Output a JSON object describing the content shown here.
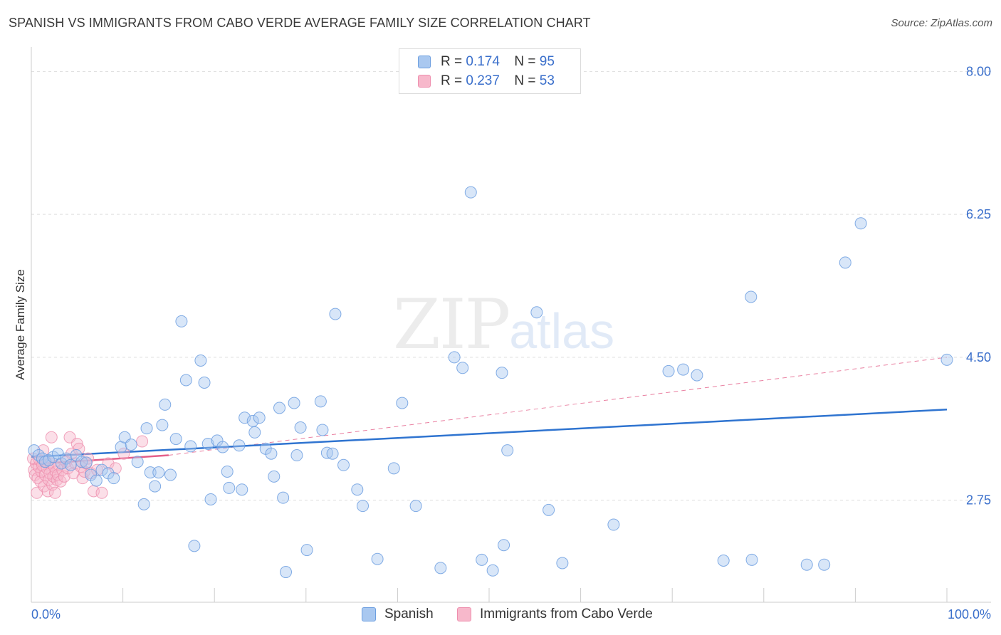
{
  "header": {
    "title": "SPANISH VS IMMIGRANTS FROM CABO VERDE AVERAGE FAMILY SIZE CORRELATION CHART",
    "source": "Source: ZipAtlas.com"
  },
  "watermark": {
    "zip": "ZIP",
    "atlas": "atlas"
  },
  "legend": {
    "rows": [
      {
        "r_label": "R =",
        "r_value": "0.174",
        "n_label": "N =",
        "n_value": "95"
      },
      {
        "r_label": "R =",
        "r_value": "0.237",
        "n_label": "N =",
        "n_value": "53"
      }
    ]
  },
  "colors": {
    "blue_fill": "#a9c8f0",
    "blue_stroke": "#6d9fe0",
    "blue_line": "#2f74d0",
    "pink_fill": "#f7b8cb",
    "pink_stroke": "#ee8fae",
    "pink_line": "#e4608a",
    "grid": "#dddddd",
    "tick_text": "#3a6fcb"
  },
  "chart_data": {
    "type": "scatter",
    "title": "SPANISH VS IMMIGRANTS FROM CABO VERDE AVERAGE FAMILY SIZE CORRELATION CHART",
    "xlabel": "",
    "ylabel": "Average Family Size",
    "xlim": [
      0,
      100
    ],
    "ylim": [
      1.5,
      8.3
    ],
    "x_tick_labels": [
      "0.0%",
      "100.0%"
    ],
    "y_ticks": [
      2.75,
      4.5,
      6.25,
      8.0
    ],
    "y_tick_labels": [
      "2.75",
      "4.50",
      "6.25",
      "8.00"
    ],
    "grid": true,
    "legend_position": "top-center",
    "series": [
      {
        "name": "Spanish",
        "color": "#a9c8f0",
        "trend": {
          "x": [
            0,
            100
          ],
          "y": [
            3.28,
            3.86
          ]
        },
        "points": [
          [
            0.3,
            3.36
          ],
          [
            0.8,
            3.3
          ],
          [
            1.2,
            3.26
          ],
          [
            1.5,
            3.22
          ],
          [
            1.9,
            3.24
          ],
          [
            2.4,
            3.28
          ],
          [
            2.9,
            3.32
          ],
          [
            3.3,
            3.2
          ],
          [
            3.8,
            3.26
          ],
          [
            4.3,
            3.18
          ],
          [
            4.9,
            3.3
          ],
          [
            5.5,
            3.22
          ],
          [
            6.0,
            3.21
          ],
          [
            6.5,
            3.06
          ],
          [
            7.1,
            2.99
          ],
          [
            7.7,
            3.12
          ],
          [
            8.4,
            3.08
          ],
          [
            9.0,
            3.02
          ],
          [
            9.8,
            3.4
          ],
          [
            10.2,
            3.52
          ],
          [
            10.9,
            3.43
          ],
          [
            11.6,
            3.22
          ],
          [
            12.3,
            2.7
          ],
          [
            12.6,
            3.63
          ],
          [
            13.0,
            3.09
          ],
          [
            13.5,
            2.92
          ],
          [
            13.9,
            3.09
          ],
          [
            14.3,
            3.67
          ],
          [
            14.6,
            3.92
          ],
          [
            15.2,
            3.06
          ],
          [
            15.8,
            3.5
          ],
          [
            16.4,
            4.94
          ],
          [
            16.9,
            4.22
          ],
          [
            17.4,
            3.41
          ],
          [
            17.8,
            2.19
          ],
          [
            18.5,
            4.46
          ],
          [
            18.9,
            4.19
          ],
          [
            19.3,
            3.44
          ],
          [
            19.6,
            2.76
          ],
          [
            20.3,
            3.48
          ],
          [
            20.9,
            3.4
          ],
          [
            21.4,
            3.1
          ],
          [
            21.6,
            2.9
          ],
          [
            22.7,
            3.42
          ],
          [
            23.0,
            2.88
          ],
          [
            23.3,
            3.76
          ],
          [
            24.2,
            3.72
          ],
          [
            24.4,
            3.58
          ],
          [
            24.9,
            3.76
          ],
          [
            25.6,
            3.38
          ],
          [
            26.2,
            3.32
          ],
          [
            26.5,
            3.04
          ],
          [
            27.1,
            3.88
          ],
          [
            27.5,
            2.78
          ],
          [
            27.8,
            1.87
          ],
          [
            28.7,
            3.94
          ],
          [
            29.0,
            3.3
          ],
          [
            29.4,
            3.64
          ],
          [
            30.1,
            2.14
          ],
          [
            31.6,
            3.96
          ],
          [
            31.8,
            3.61
          ],
          [
            32.3,
            3.33
          ],
          [
            32.9,
            3.32
          ],
          [
            33.2,
            5.03
          ],
          [
            34.1,
            3.18
          ],
          [
            35.6,
            2.88
          ],
          [
            36.2,
            2.68
          ],
          [
            37.8,
            2.03
          ],
          [
            39.6,
            3.14
          ],
          [
            40.5,
            3.94
          ],
          [
            42.0,
            2.68
          ],
          [
            44.7,
            1.92
          ],
          [
            46.2,
            4.5
          ],
          [
            47.1,
            4.37
          ],
          [
            48.0,
            6.52
          ],
          [
            49.2,
            2.02
          ],
          [
            50.4,
            1.89
          ],
          [
            51.4,
            4.31
          ],
          [
            51.6,
            2.2
          ],
          [
            52.0,
            3.36
          ],
          [
            55.2,
            5.05
          ],
          [
            56.5,
            2.63
          ],
          [
            63.6,
            2.45
          ],
          [
            69.6,
            4.33
          ],
          [
            71.2,
            4.35
          ],
          [
            72.7,
            4.28
          ],
          [
            75.6,
            2.01
          ],
          [
            78.6,
            5.24
          ],
          [
            78.7,
            2.02
          ],
          [
            84.7,
            1.96
          ],
          [
            86.6,
            1.96
          ],
          [
            88.9,
            5.66
          ],
          [
            90.6,
            6.14
          ],
          [
            100.0,
            4.47
          ],
          [
            58.0,
            1.98
          ]
        ]
      },
      {
        "name": "Immigrants from Cabo Verde",
        "color": "#f7b8cb",
        "trend": {
          "x": [
            0,
            15
          ],
          "y": [
            3.19,
            3.3
          ]
        },
        "trend_extension": {
          "x": [
            15,
            100
          ],
          "y": [
            3.3,
            4.5
          ]
        },
        "points": [
          [
            0.2,
            3.26
          ],
          [
            0.3,
            3.12
          ],
          [
            0.4,
            3.06
          ],
          [
            0.5,
            3.2
          ],
          [
            0.6,
            2.84
          ],
          [
            0.7,
            3.02
          ],
          [
            0.8,
            3.16
          ],
          [
            0.9,
            3.24
          ],
          [
            1.0,
            2.98
          ],
          [
            1.1,
            3.1
          ],
          [
            1.2,
            3.18
          ],
          [
            1.3,
            3.36
          ],
          [
            1.4,
            2.92
          ],
          [
            1.5,
            3.06
          ],
          [
            1.6,
            3.22
          ],
          [
            1.7,
            3.14
          ],
          [
            1.8,
            2.86
          ],
          [
            1.9,
            3.0
          ],
          [
            2.0,
            3.08
          ],
          [
            2.1,
            3.2
          ],
          [
            2.2,
            3.52
          ],
          [
            2.3,
            2.94
          ],
          [
            2.4,
            3.04
          ],
          [
            2.5,
            3.16
          ],
          [
            2.6,
            2.84
          ],
          [
            2.7,
            3.1
          ],
          [
            2.8,
            3.0
          ],
          [
            2.9,
            3.06
          ],
          [
            3.0,
            3.18
          ],
          [
            3.2,
            2.98
          ],
          [
            3.4,
            3.12
          ],
          [
            3.6,
            3.04
          ],
          [
            3.8,
            3.22
          ],
          [
            4.0,
            3.14
          ],
          [
            4.2,
            3.52
          ],
          [
            4.4,
            3.32
          ],
          [
            4.6,
            3.08
          ],
          [
            4.8,
            3.2
          ],
          [
            5.0,
            3.44
          ],
          [
            5.2,
            3.38
          ],
          [
            5.4,
            3.16
          ],
          [
            5.6,
            3.02
          ],
          [
            5.8,
            3.1
          ],
          [
            6.0,
            3.2
          ],
          [
            6.2,
            3.26
          ],
          [
            6.5,
            3.08
          ],
          [
            6.8,
            2.86
          ],
          [
            7.2,
            3.12
          ],
          [
            7.7,
            2.84
          ],
          [
            8.4,
            3.2
          ],
          [
            9.2,
            3.14
          ],
          [
            10.1,
            3.32
          ],
          [
            12.1,
            3.47
          ]
        ]
      }
    ]
  },
  "bottom_legend": {
    "items": [
      "Spanish",
      "Immigrants from Cabo Verde"
    ]
  }
}
